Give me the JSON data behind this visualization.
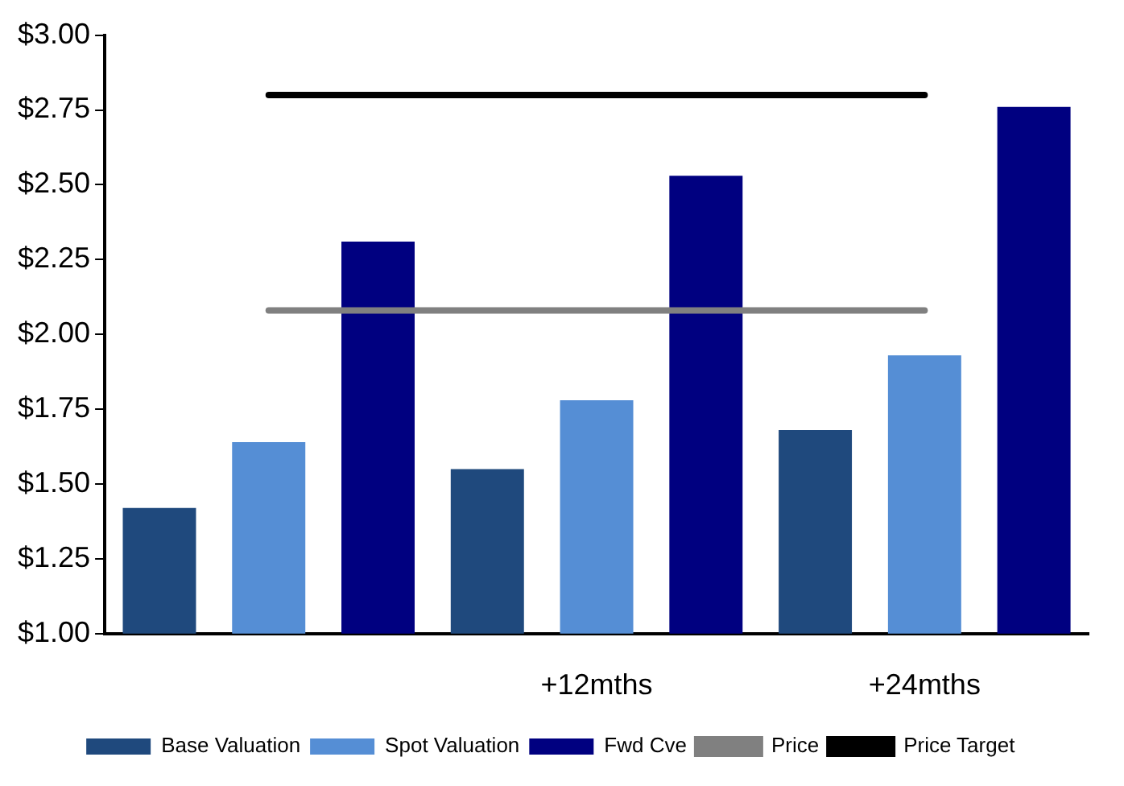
{
  "chart_data": {
    "type": "bar",
    "categories": [
      null,
      "+12mths",
      "+24mths"
    ],
    "series": [
      {
        "name": "Base Valuation",
        "color": "#1f497d",
        "values": [
          1.42,
          1.55,
          1.68
        ]
      },
      {
        "name": "Spot Valuation",
        "color": "#558ed5",
        "values": [
          1.64,
          1.78,
          1.93
        ]
      },
      {
        "name": "Fwd Cve",
        "color": "#000080",
        "values": [
          2.31,
          2.53,
          2.76
        ]
      },
      {
        "name": "Price",
        "type": "line",
        "color": "#808080",
        "values": [
          2.08,
          2.08,
          2.08
        ]
      },
      {
        "name": "Price Target",
        "type": "line",
        "color": "#000000",
        "values": [
          2.8,
          2.8,
          2.8
        ]
      }
    ],
    "ylim": [
      1,
      3
    ],
    "yticks": [
      {
        "value": 1,
        "label": "$1.00"
      },
      {
        "value": 1.25,
        "label": "$1.25"
      },
      {
        "value": 1.5,
        "label": "$1.50"
      },
      {
        "value": 1.75,
        "label": "$1.75"
      },
      {
        "value": 2,
        "label": "$2.00"
      },
      {
        "value": 2.25,
        "label": "$2.25"
      },
      {
        "value": 2.5,
        "label": "$2.50"
      },
      {
        "value": 2.75,
        "label": "$2.75"
      },
      {
        "value": 3,
        "label": "$3.00"
      }
    ],
    "grid": false,
    "legend": "bottom",
    "marker": "none"
  }
}
